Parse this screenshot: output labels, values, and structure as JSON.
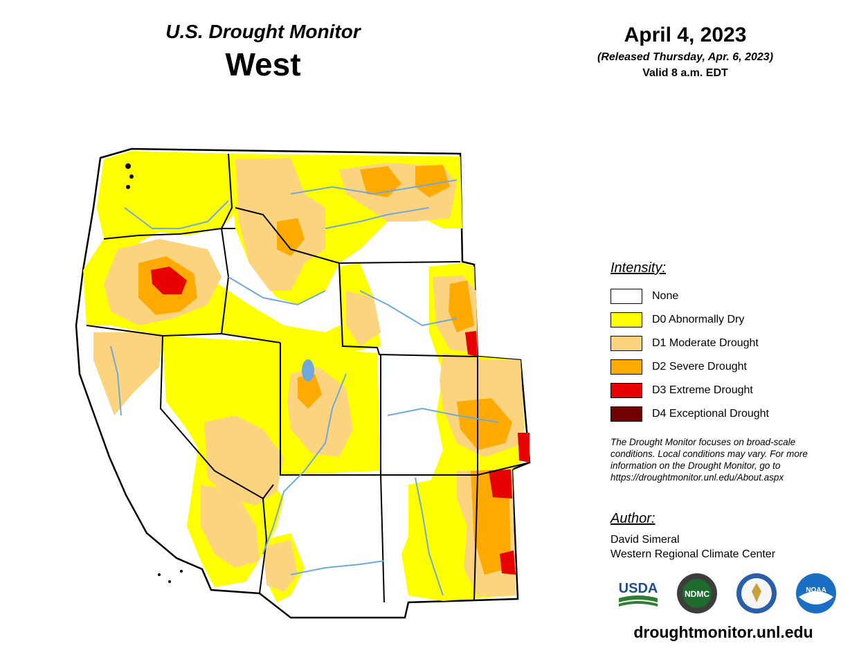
{
  "header": {
    "title_line1": "U.S. Drought Monitor",
    "title_line2": "West",
    "date": "April 4, 2023",
    "released": "(Released Thursday, Apr. 6, 2023)",
    "valid": "Valid 8 a.m. EDT"
  },
  "legend": {
    "title": "Intensity:",
    "items": [
      {
        "label": "None",
        "color": "#ffffff"
      },
      {
        "label": "D0 Abnormally Dry",
        "color": "#ffff00"
      },
      {
        "label": "D1 Moderate Drought",
        "color": "#fcd37f"
      },
      {
        "label": "D2 Severe Drought",
        "color": "#ffaa00"
      },
      {
        "label": "D3 Extreme Drought",
        "color": "#e60000"
      },
      {
        "label": "D4 Exceptional Drought",
        "color": "#730000"
      }
    ]
  },
  "note": "The Drought Monitor focuses on broad-scale conditions. Local conditions may vary. For more information on the Drought Monitor, go to https://droughtmonitor.unl.edu/About.aspx",
  "author": {
    "title": "Author:",
    "name": "David Simeral",
    "org": "Western Regional Climate Center"
  },
  "logos": [
    "USDA",
    "NDMC",
    "Department of Commerce seal",
    "NOAA"
  ],
  "logo_text": {
    "usda": "USDA",
    "ndmc": "NDMC",
    "noaa": "NOAA"
  },
  "footer_url": "droughtmonitor.unl.edu",
  "map": {
    "colors": {
      "none": "#ffffff",
      "d0": "#ffff00",
      "d1": "#fcd37f",
      "d2": "#ffaa00",
      "d3": "#e60000",
      "d4": "#730000",
      "water": "#6fa8dc",
      "border": "#000000"
    }
  }
}
